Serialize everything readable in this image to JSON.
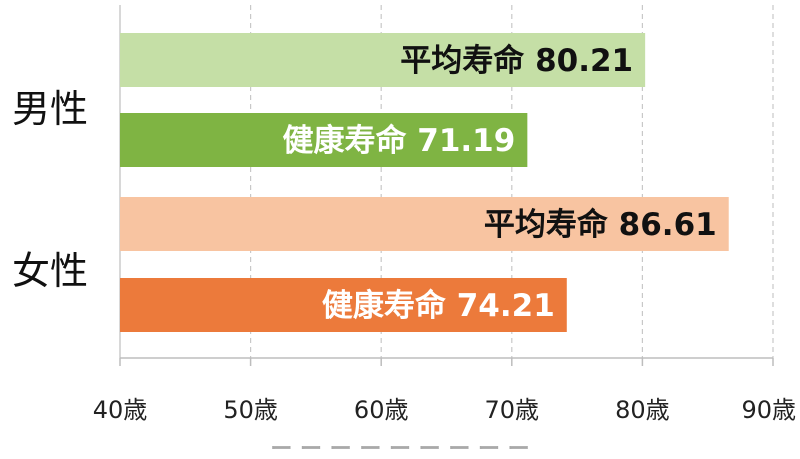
{
  "chart_data": {
    "type": "bar",
    "orientation": "horizontal",
    "categories": [
      "男性",
      "女性"
    ],
    "bars": [
      {
        "category": "男性",
        "name": "平均寿命",
        "value": 80.21,
        "color": "#c5dfa6",
        "text_color": "#111111"
      },
      {
        "category": "男性",
        "name": "健康寿命",
        "value": 71.19,
        "color": "#7fb443",
        "text_color": "#ffffff"
      },
      {
        "category": "女性",
        "name": "平均寿命",
        "value": 86.61,
        "color": "#f8c4a1",
        "text_color": "#111111"
      },
      {
        "category": "女性",
        "name": "健康寿命",
        "value": 74.21,
        "color": "#ec7a3b",
        "text_color": "#ffffff"
      }
    ],
    "x_ticks": [
      "40歳",
      "50歳",
      "60歳",
      "70歳",
      "80歳",
      "90歳"
    ],
    "xlim": [
      40,
      90
    ],
    "grid": true,
    "caption": "ー ー ー ー ー ー ー ー ー"
  }
}
